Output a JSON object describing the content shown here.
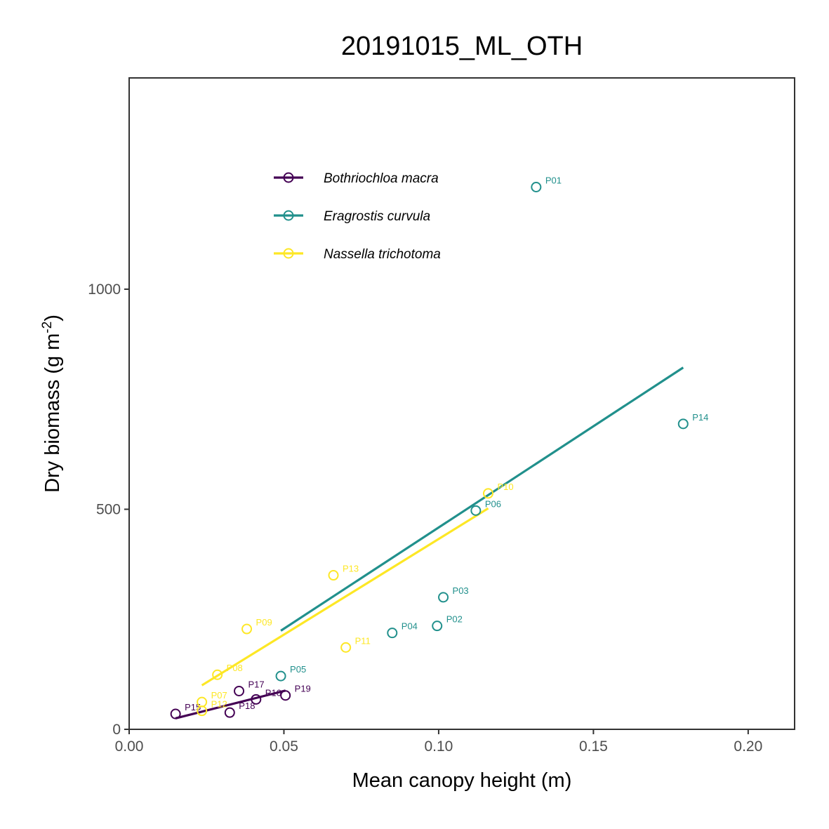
{
  "chart_data": {
    "type": "scatter",
    "title": "20191015_ML_OTH",
    "xlabel": "Mean canopy height (m)",
    "ylabel_main": "Dry biomass (g m",
    "ylabel_sup": "-2",
    "ylabel_close": ")",
    "xlim": [
      0.0,
      0.215
    ],
    "ylim": [
      0,
      1480
    ],
    "xticks": [
      {
        "value": 0.0,
        "label": "0.00"
      },
      {
        "value": 0.05,
        "label": "0.05"
      },
      {
        "value": 0.1,
        "label": "0.10"
      },
      {
        "value": 0.15,
        "label": "0.15"
      },
      {
        "value": 0.2,
        "label": "0.20"
      }
    ],
    "yticks": [
      {
        "value": 0,
        "label": "0"
      },
      {
        "value": 500,
        "label": "500"
      },
      {
        "value": 1000,
        "label": "1000"
      }
    ],
    "grid": false,
    "legend_position": "top-left",
    "series": [
      {
        "name": "Bothriochloa macra",
        "color": "#440154",
        "points": [
          {
            "label": "P15",
            "x": 0.015,
            "y": 35
          },
          {
            "label": "P16",
            "x": 0.041,
            "y": 68
          },
          {
            "label": "P17",
            "x": 0.0355,
            "y": 87
          },
          {
            "label": "P18",
            "x": 0.0325,
            "y": 38
          },
          {
            "label": "P19",
            "x": 0.0505,
            "y": 77
          }
        ],
        "fit": [
          {
            "x": 0.015,
            "y": 25
          },
          {
            "x": 0.0505,
            "y": 88
          }
        ]
      },
      {
        "name": "Eragrostis curvula",
        "color": "#21908C",
        "points": [
          {
            "label": "P01",
            "x": 0.1315,
            "y": 1232
          },
          {
            "label": "P02",
            "x": 0.0995,
            "y": 235
          },
          {
            "label": "P03",
            "x": 0.1015,
            "y": 300
          },
          {
            "label": "P04",
            "x": 0.085,
            "y": 219
          },
          {
            "label": "P05",
            "x": 0.049,
            "y": 121
          },
          {
            "label": "P06",
            "x": 0.112,
            "y": 497
          },
          {
            "label": "P14",
            "x": 0.179,
            "y": 694
          }
        ],
        "fit": [
          {
            "x": 0.049,
            "y": 224
          },
          {
            "x": 0.179,
            "y": 822
          }
        ]
      },
      {
        "name": "Nassella trichotoma",
        "color": "#FDE725",
        "points": [
          {
            "label": "P07",
            "x": 0.0235,
            "y": 62
          },
          {
            "label": "P08",
            "x": 0.0285,
            "y": 124
          },
          {
            "label": "P09",
            "x": 0.038,
            "y": 228
          },
          {
            "label": "P10",
            "x": 0.116,
            "y": 536
          },
          {
            "label": "P11",
            "x": 0.07,
            "y": 186
          },
          {
            "label": "P12",
            "x": 0.0235,
            "y": 42
          },
          {
            "label": "P13",
            "x": 0.066,
            "y": 350
          }
        ],
        "fit": [
          {
            "x": 0.0235,
            "y": 100
          },
          {
            "x": 0.116,
            "y": 502
          }
        ]
      }
    ]
  }
}
